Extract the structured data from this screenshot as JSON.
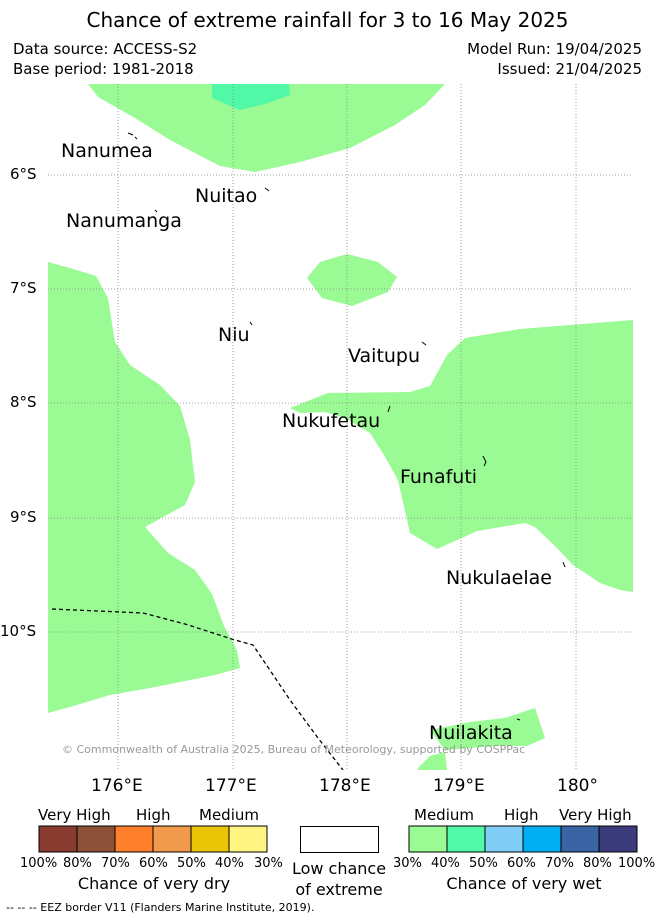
{
  "title": "Chance of extreme rainfall for 3 to 16 May 2025",
  "meta": {
    "data_source": "Data source: ACCESS-S2",
    "base_period": "Base period: 1981-2018",
    "model_run": "Model Run: 19/04/2025",
    "issued": "Issued: 21/04/2025"
  },
  "map": {
    "lat_labels": [
      "6°S",
      "7°S",
      "8°S",
      "9°S",
      "10°S"
    ],
    "lon_labels": [
      "176°E",
      "177°E",
      "178°E",
      "179°E",
      "180°"
    ],
    "islands": {
      "nanumea": "Nanumea",
      "nuitao": "Nuitao",
      "nanumanga": "Nanumanga",
      "niu": "Niu",
      "vaitupu": "Vaitupu",
      "nukufetau": "Nukufetau",
      "funafuti": "Funafuti",
      "nukulaelae": "Nukulaelae",
      "nuilakita": "Nuilakita"
    },
    "copyright": "© Commonwealth of Australia 2025, Bureau of Meteorology, supported by COSPPac",
    "colors": {
      "wet_30_40": "#9afa94",
      "wet_40_50": "#50f8a7",
      "grid": "#888888",
      "eez": "#000000"
    }
  },
  "legend": {
    "dry": {
      "levels": [
        "Very High",
        "High",
        "Medium"
      ],
      "percents": [
        "100%",
        "80%",
        "70%",
        "60%",
        "50%",
        "40%",
        "30%"
      ],
      "colors": [
        "#8b3c30",
        "#8d5139",
        "#ff7f2a",
        "#f29a4c",
        "#eac507",
        "#fff481"
      ],
      "caption": "Chance of very dry"
    },
    "low": {
      "caption_line1": "Low chance",
      "caption_line2": "of extreme",
      "color": "#ffffff"
    },
    "wet": {
      "levels": [
        "Medium",
        "High",
        "Very High"
      ],
      "percents": [
        "30%",
        "40%",
        "50%",
        "60%",
        "70%",
        "80%",
        "100%"
      ],
      "colors": [
        "#9afa94",
        "#50f8a7",
        "#80cef8",
        "#00aff2",
        "#3a64a4",
        "#3c3b7b"
      ],
      "caption": "Chance of very wet"
    }
  },
  "footer": "--  --  -- EEZ border V11 (Flanders Marine Institute, 2019)."
}
